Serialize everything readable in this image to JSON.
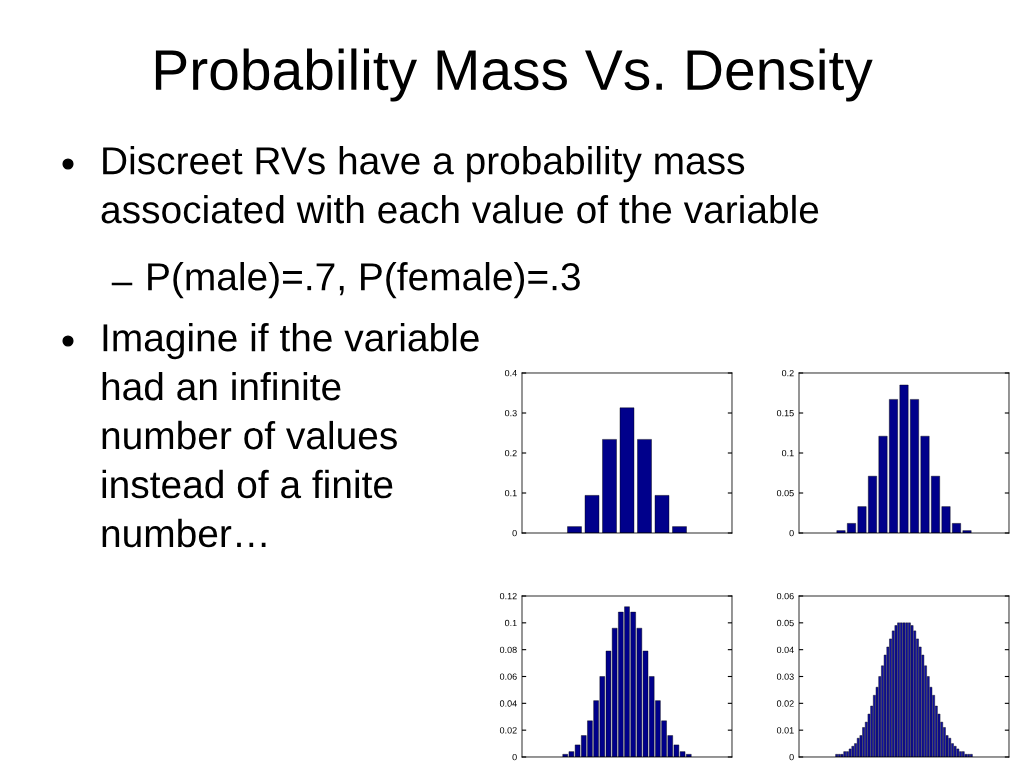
{
  "chart_data": [
    {
      "type": "bar",
      "title": "Probability Mass Vs. Density",
      "annotations": [
        "Discreet RVs have a probability mass\nassociated with each value of the variable",
        "P(male)=.7, P(female)=.3",
        "Imagine if the variable\nhad an infinite\nnumber of values\ninstead of a finite\nnumber…"
      ],
      "categories": [
        null,
        null,
        null,
        null,
        null,
        null,
        null
      ],
      "values": [
        0.016,
        0.094,
        0.234,
        0.313,
        0.234,
        0.094,
        0.016
      ],
      "color": "#00008b",
      "ylim": [
        0,
        0.4
      ],
      "yticks": [
        0,
        0.1,
        0.2,
        0.3,
        0.4
      ],
      "tick_labels": "y"
    },
    {
      "type": "bar",
      "categories": [
        null,
        null,
        null,
        null,
        null,
        null,
        null,
        null,
        null,
        null,
        null,
        null,
        null
      ],
      "values": [
        0.003,
        0.012,
        0.033,
        0.071,
        0.121,
        0.167,
        0.185,
        0.167,
        0.121,
        0.071,
        0.033,
        0.012,
        0.003
      ],
      "color": "#00008b",
      "ylim": [
        0,
        0.2
      ],
      "yticks": [
        0,
        0.05,
        0.1,
        0.15,
        0.2
      ],
      "tick_labels": "y"
    },
    {
      "type": "bar",
      "categories": [
        null,
        null,
        null,
        null,
        null,
        null,
        null,
        null,
        null,
        null,
        null,
        null,
        null,
        null,
        null,
        null,
        null,
        null,
        null,
        null,
        null
      ],
      "values": [
        0.002,
        0.004,
        0.009,
        0.016,
        0.027,
        0.042,
        0.06,
        0.079,
        0.096,
        0.108,
        0.112,
        0.108,
        0.096,
        0.079,
        0.06,
        0.042,
        0.027,
        0.016,
        0.009,
        0.004,
        0.002
      ],
      "color": "#00008b",
      "ylim": [
        0,
        0.12
      ],
      "yticks": [
        0,
        0.02,
        0.04,
        0.06,
        0.08,
        0.1,
        0.12
      ],
      "tick_labels": "y"
    },
    {
      "type": "bar",
      "categories": [
        null,
        null,
        null,
        null,
        null,
        null,
        null,
        null,
        null,
        null,
        null,
        null,
        null,
        null,
        null,
        null,
        null,
        null,
        null,
        null,
        null,
        null,
        null,
        null,
        null,
        null,
        null,
        null,
        null,
        null,
        null,
        null,
        null,
        null,
        null,
        null,
        null,
        null,
        null,
        null,
        null,
        null,
        null,
        null,
        null,
        null,
        null,
        null,
        null,
        null,
        null
      ],
      "values": [
        0.001,
        0.001,
        0.001,
        0.002,
        0.002,
        0.003,
        0.004,
        0.005,
        0.007,
        0.008,
        0.011,
        0.013,
        0.016,
        0.019,
        0.023,
        0.026,
        0.03,
        0.034,
        0.038,
        0.041,
        0.044,
        0.047,
        0.049,
        0.05,
        0.05,
        0.05,
        0.05,
        0.05,
        0.049,
        0.047,
        0.044,
        0.041,
        0.038,
        0.034,
        0.03,
        0.026,
        0.023,
        0.019,
        0.016,
        0.013,
        0.011,
        0.008,
        0.007,
        0.005,
        0.004,
        0.003,
        0.002,
        0.002,
        0.001,
        0.001,
        0.001
      ],
      "color": "#1010a0",
      "ylim": [
        0,
        0.06
      ],
      "yticks": [
        0,
        0.01,
        0.02,
        0.03,
        0.04,
        0.05,
        0.06
      ],
      "tick_labels": "y"
    }
  ]
}
